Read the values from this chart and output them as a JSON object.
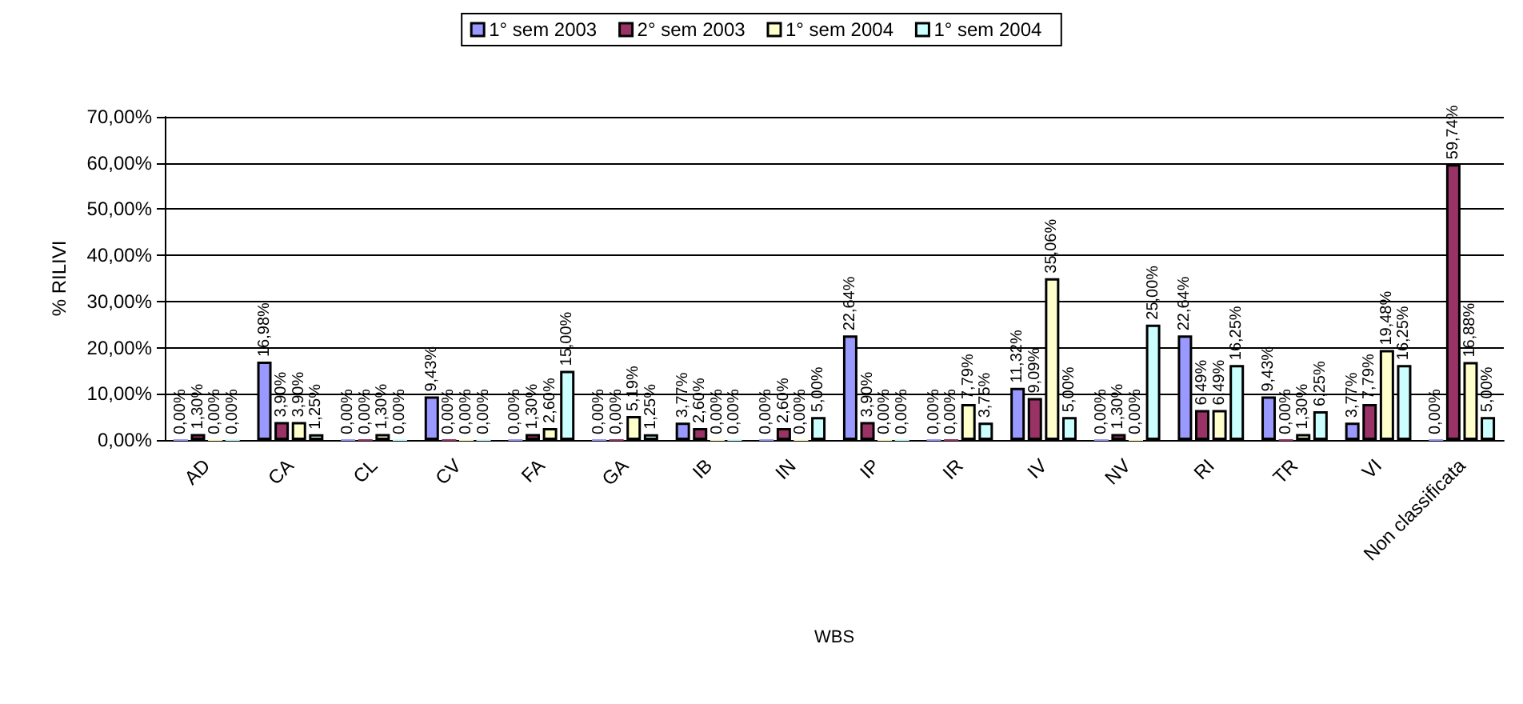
{
  "chart_data": {
    "type": "bar",
    "xlabel": "WBS",
    "ylabel": "% RILIVI",
    "categories": [
      "AD",
      "CA",
      "CL",
      "CV",
      "FA",
      "GA",
      "IB",
      "IN",
      "IP",
      "IR",
      "IV",
      "NV",
      "RI",
      "TR",
      "VI",
      "Non classificata"
    ],
    "series": [
      {
        "name": "1° sem 2003",
        "color": "#9999ff",
        "values": [
          0,
          16.98,
          0,
          9.43,
          0,
          0,
          3.77,
          0,
          22.64,
          0,
          11.32,
          0,
          22.64,
          9.43,
          3.77,
          0
        ],
        "value_labels": [
          "0,00%",
          "16,98%",
          "0,00%",
          "9,43%",
          "0,00%",
          "0,00%",
          "3,77%",
          "0,00%",
          "22,64%",
          "0,00%",
          "11,32%",
          "0,00%",
          "22,64%",
          "9,43%",
          "3,77%",
          "0,00%"
        ]
      },
      {
        "name": "2° sem 2003",
        "color": "#993366",
        "values": [
          1.3,
          3.9,
          0,
          0,
          1.3,
          0,
          2.6,
          2.6,
          3.9,
          0,
          9.09,
          1.3,
          6.49,
          0,
          7.79,
          59.74
        ],
        "value_labels": [
          "1,30%",
          "3,90%",
          "0,00%",
          "0,00%",
          "1,30%",
          "0,00%",
          "2,60%",
          "2,60%",
          "3,90%",
          "0,00%",
          "9,09%",
          "1,30%",
          "6,49%",
          "0,00%",
          "7,79%",
          "59,74%"
        ]
      },
      {
        "name": "1° sem 2004",
        "color": "#ffffcc",
        "values": [
          0,
          3.9,
          1.3,
          0,
          2.6,
          5.19,
          0,
          0,
          0,
          7.79,
          35.06,
          0,
          6.49,
          1.3,
          19.48,
          16.88
        ],
        "value_labels": [
          "0,00%",
          "3,90%",
          "1,30%",
          "0,00%",
          "2,60%",
          "5,19%",
          "0,00%",
          "0,00%",
          "0,00%",
          "7,79%",
          "35,06%",
          "0,00%",
          "6,49%",
          "1,30%",
          "19,48%",
          "16,88%"
        ]
      },
      {
        "name": "1° sem 2004",
        "color": "#ccffff",
        "values": [
          0,
          1.25,
          0,
          0,
          15,
          1.25,
          0,
          5,
          0,
          3.75,
          5,
          25,
          16.25,
          6.25,
          16.25,
          5
        ],
        "value_labels": [
          "0,00%",
          "1,25%",
          "0,00%",
          "0,00%",
          "15,00%",
          "1,25%",
          "0,00%",
          "5,00%",
          "0,00%",
          "3,75%",
          "5,00%",
          "25,00%",
          "16,25%",
          "6,25%",
          "16,25%",
          "5,00%"
        ]
      }
    ],
    "ylim": [
      0,
      70
    ],
    "yticks": [
      {
        "value": 0,
        "label": "0,00%"
      },
      {
        "value": 10,
        "label": "10,00%"
      },
      {
        "value": 20,
        "label": "20,00%"
      },
      {
        "value": 30,
        "label": "30,00%"
      },
      {
        "value": 40,
        "label": "40,00%"
      },
      {
        "value": 50,
        "label": "50,00%"
      },
      {
        "value": 60,
        "label": "60,00%"
      },
      {
        "value": 70,
        "label": "70,00%"
      }
    ],
    "grid": "y",
    "legend": "top"
  }
}
